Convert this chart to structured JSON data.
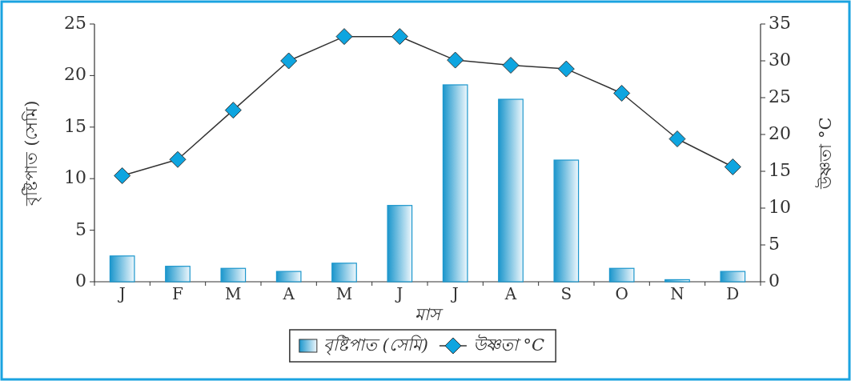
{
  "chart_data": {
    "type": "bar",
    "categories": [
      "J",
      "F",
      "M",
      "A",
      "M",
      "J",
      "J",
      "A",
      "S",
      "O",
      "N",
      "D"
    ],
    "xlabel": "মাস",
    "ylabel": "বৃষ্টিপাত (সেমি)",
    "y2label": "উষ্ণতা °C",
    "ylim": [
      0,
      25
    ],
    "yticks": [
      0,
      5,
      10,
      15,
      20,
      25
    ],
    "y2lim": [
      0,
      35
    ],
    "y2ticks": [
      0,
      5,
      10,
      15,
      20,
      25,
      30,
      35
    ],
    "legend": "bottom",
    "marker": "diamond",
    "series": [
      {
        "name": "বৃষ্টিপাত (সেমি)",
        "color": "#1b96cc",
        "values": [
          2.5,
          1.5,
          1.3,
          1.0,
          1.8,
          7.4,
          19.1,
          17.7,
          11.8,
          1.3,
          0.2,
          1.0
        ]
      },
      {
        "name": "উষ্ণতা °C",
        "type": "line",
        "axis": "y2",
        "color": "#0ea5e0",
        "values": [
          14.4,
          16.6,
          23.3,
          30.0,
          33.3,
          33.3,
          30.1,
          29.4,
          28.9,
          25.6,
          19.4,
          15.6
        ]
      }
    ]
  }
}
